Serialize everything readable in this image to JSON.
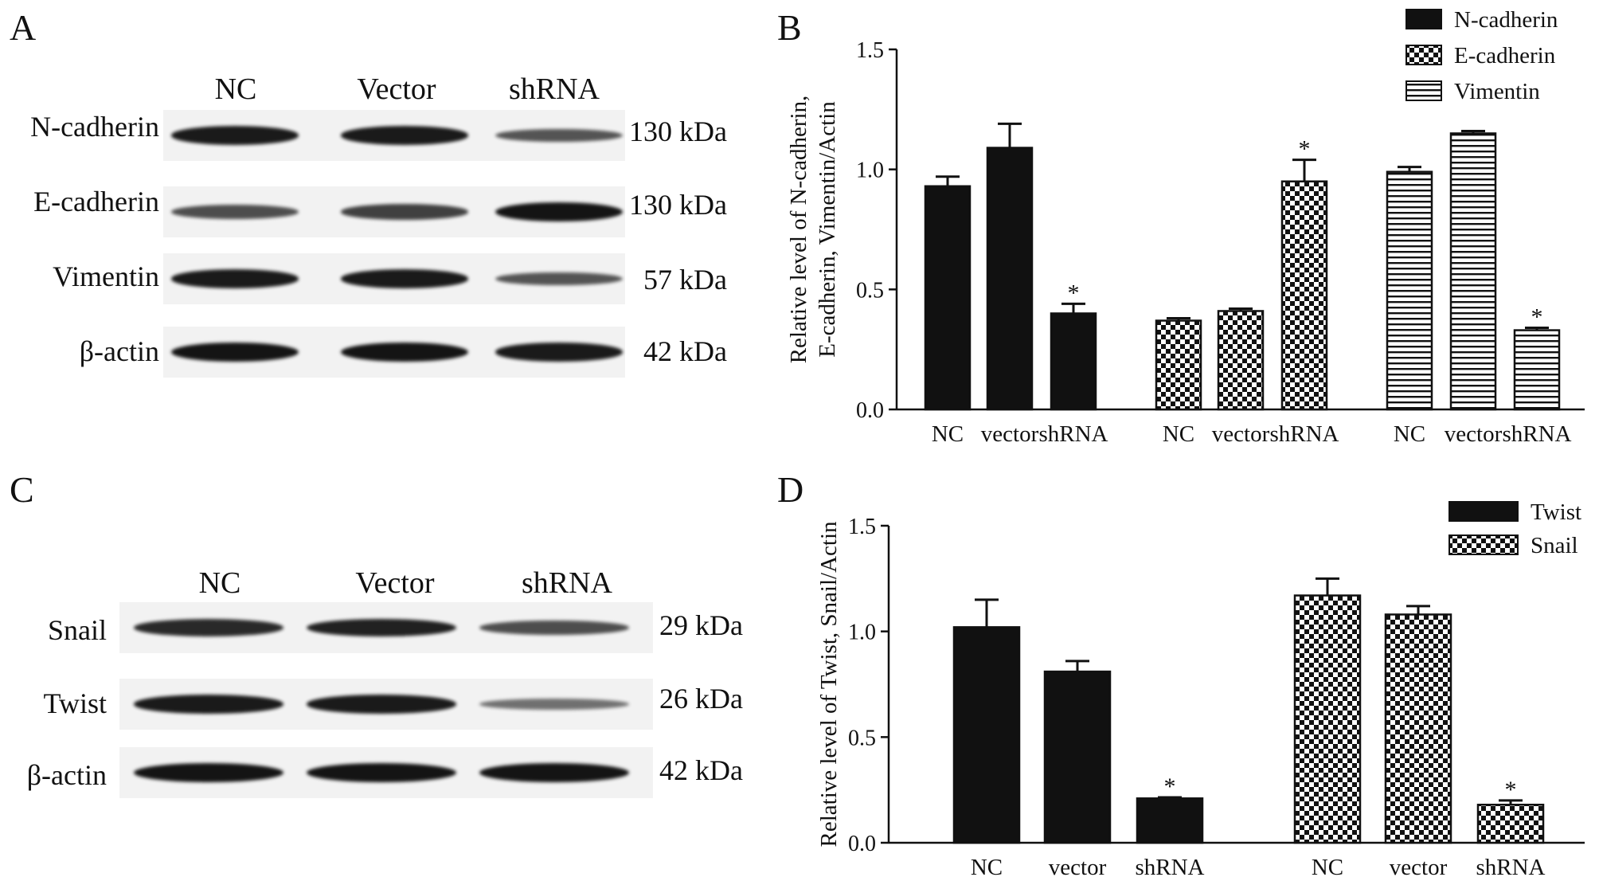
{
  "panels": {
    "A": {
      "letter": "A",
      "lanes": [
        "NC",
        "Vector",
        "shRNA"
      ],
      "rows": [
        {
          "label": "N-cadherin",
          "kda": "130 kDa",
          "intensity": [
            0.95,
            0.95,
            0.55
          ]
        },
        {
          "label": "E-cadherin",
          "kda": "130 kDa",
          "intensity": [
            0.6,
            0.7,
            1.0
          ]
        },
        {
          "label": "Vimentin",
          "kda": "57 kDa",
          "intensity": [
            0.95,
            0.95,
            0.55
          ]
        },
        {
          "label": "β-actin",
          "kda": "42 kDa",
          "intensity": [
            1.0,
            1.0,
            0.95
          ]
        }
      ]
    },
    "B": {
      "letter": "B"
    },
    "C": {
      "letter": "C",
      "lanes": [
        "NC",
        "Vector",
        "shRNA"
      ],
      "rows": [
        {
          "label": "Snail",
          "kda": "29 kDa",
          "intensity": [
            0.85,
            0.9,
            0.6
          ]
        },
        {
          "label": "Twist",
          "kda": "26 kDa",
          "intensity": [
            0.95,
            0.95,
            0.35
          ]
        },
        {
          "label": "β-actin",
          "kda": "42 kDa",
          "intensity": [
            1.0,
            1.0,
            1.0
          ]
        }
      ]
    },
    "D": {
      "letter": "D"
    }
  },
  "chart_data": [
    {
      "type": "bar",
      "panel": "B",
      "ylabel_line1": "Relative level of N-cadherin,",
      "ylabel_line2": "E-cadherin, Vimentin/Actin",
      "ylim": [
        0,
        1.5
      ],
      "yticks": [
        "0.0",
        "0.5",
        "1.0",
        "1.5"
      ],
      "significance_mark": "*",
      "series": [
        {
          "name": "N-cadherin",
          "pattern": "solid",
          "categories": [
            "NC",
            "vector",
            "shRNA"
          ],
          "values": [
            0.93,
            1.09,
            0.4
          ],
          "errors": [
            0.04,
            0.1,
            0.04
          ],
          "significant": [
            false,
            false,
            true
          ]
        },
        {
          "name": "E-cadherin",
          "pattern": "checker",
          "categories": [
            "NC",
            "vector",
            "shRNA"
          ],
          "values": [
            0.37,
            0.41,
            0.95
          ],
          "errors": [
            0.01,
            0.01,
            0.09
          ],
          "significant": [
            false,
            false,
            true
          ]
        },
        {
          "name": "Vimentin",
          "pattern": "hlines",
          "categories": [
            "NC",
            "vector",
            "shRNA"
          ],
          "values": [
            0.99,
            1.15,
            0.33
          ],
          "errors": [
            0.02,
            0.01,
            0.01
          ],
          "significant": [
            false,
            false,
            true
          ]
        }
      ]
    },
    {
      "type": "bar",
      "panel": "D",
      "ylabel_line1": "Relative level of Twist, Snail/Actin",
      "ylim": [
        0,
        1.5
      ],
      "yticks": [
        "0.0",
        "0.5",
        "1.0",
        "1.5"
      ],
      "significance_mark": "*",
      "series": [
        {
          "name": "Twist",
          "pattern": "solid",
          "categories": [
            "NC",
            "vector",
            "shRNA"
          ],
          "values": [
            1.02,
            0.81,
            0.21
          ],
          "errors": [
            0.13,
            0.05,
            0.005
          ],
          "significant": [
            false,
            false,
            true
          ]
        },
        {
          "name": "Snail",
          "pattern": "checker",
          "categories": [
            "NC",
            "vector",
            "shRNA"
          ],
          "values": [
            1.17,
            1.08,
            0.18
          ],
          "errors": [
            0.08,
            0.04,
            0.02
          ],
          "significant": [
            false,
            false,
            true
          ]
        }
      ]
    }
  ]
}
